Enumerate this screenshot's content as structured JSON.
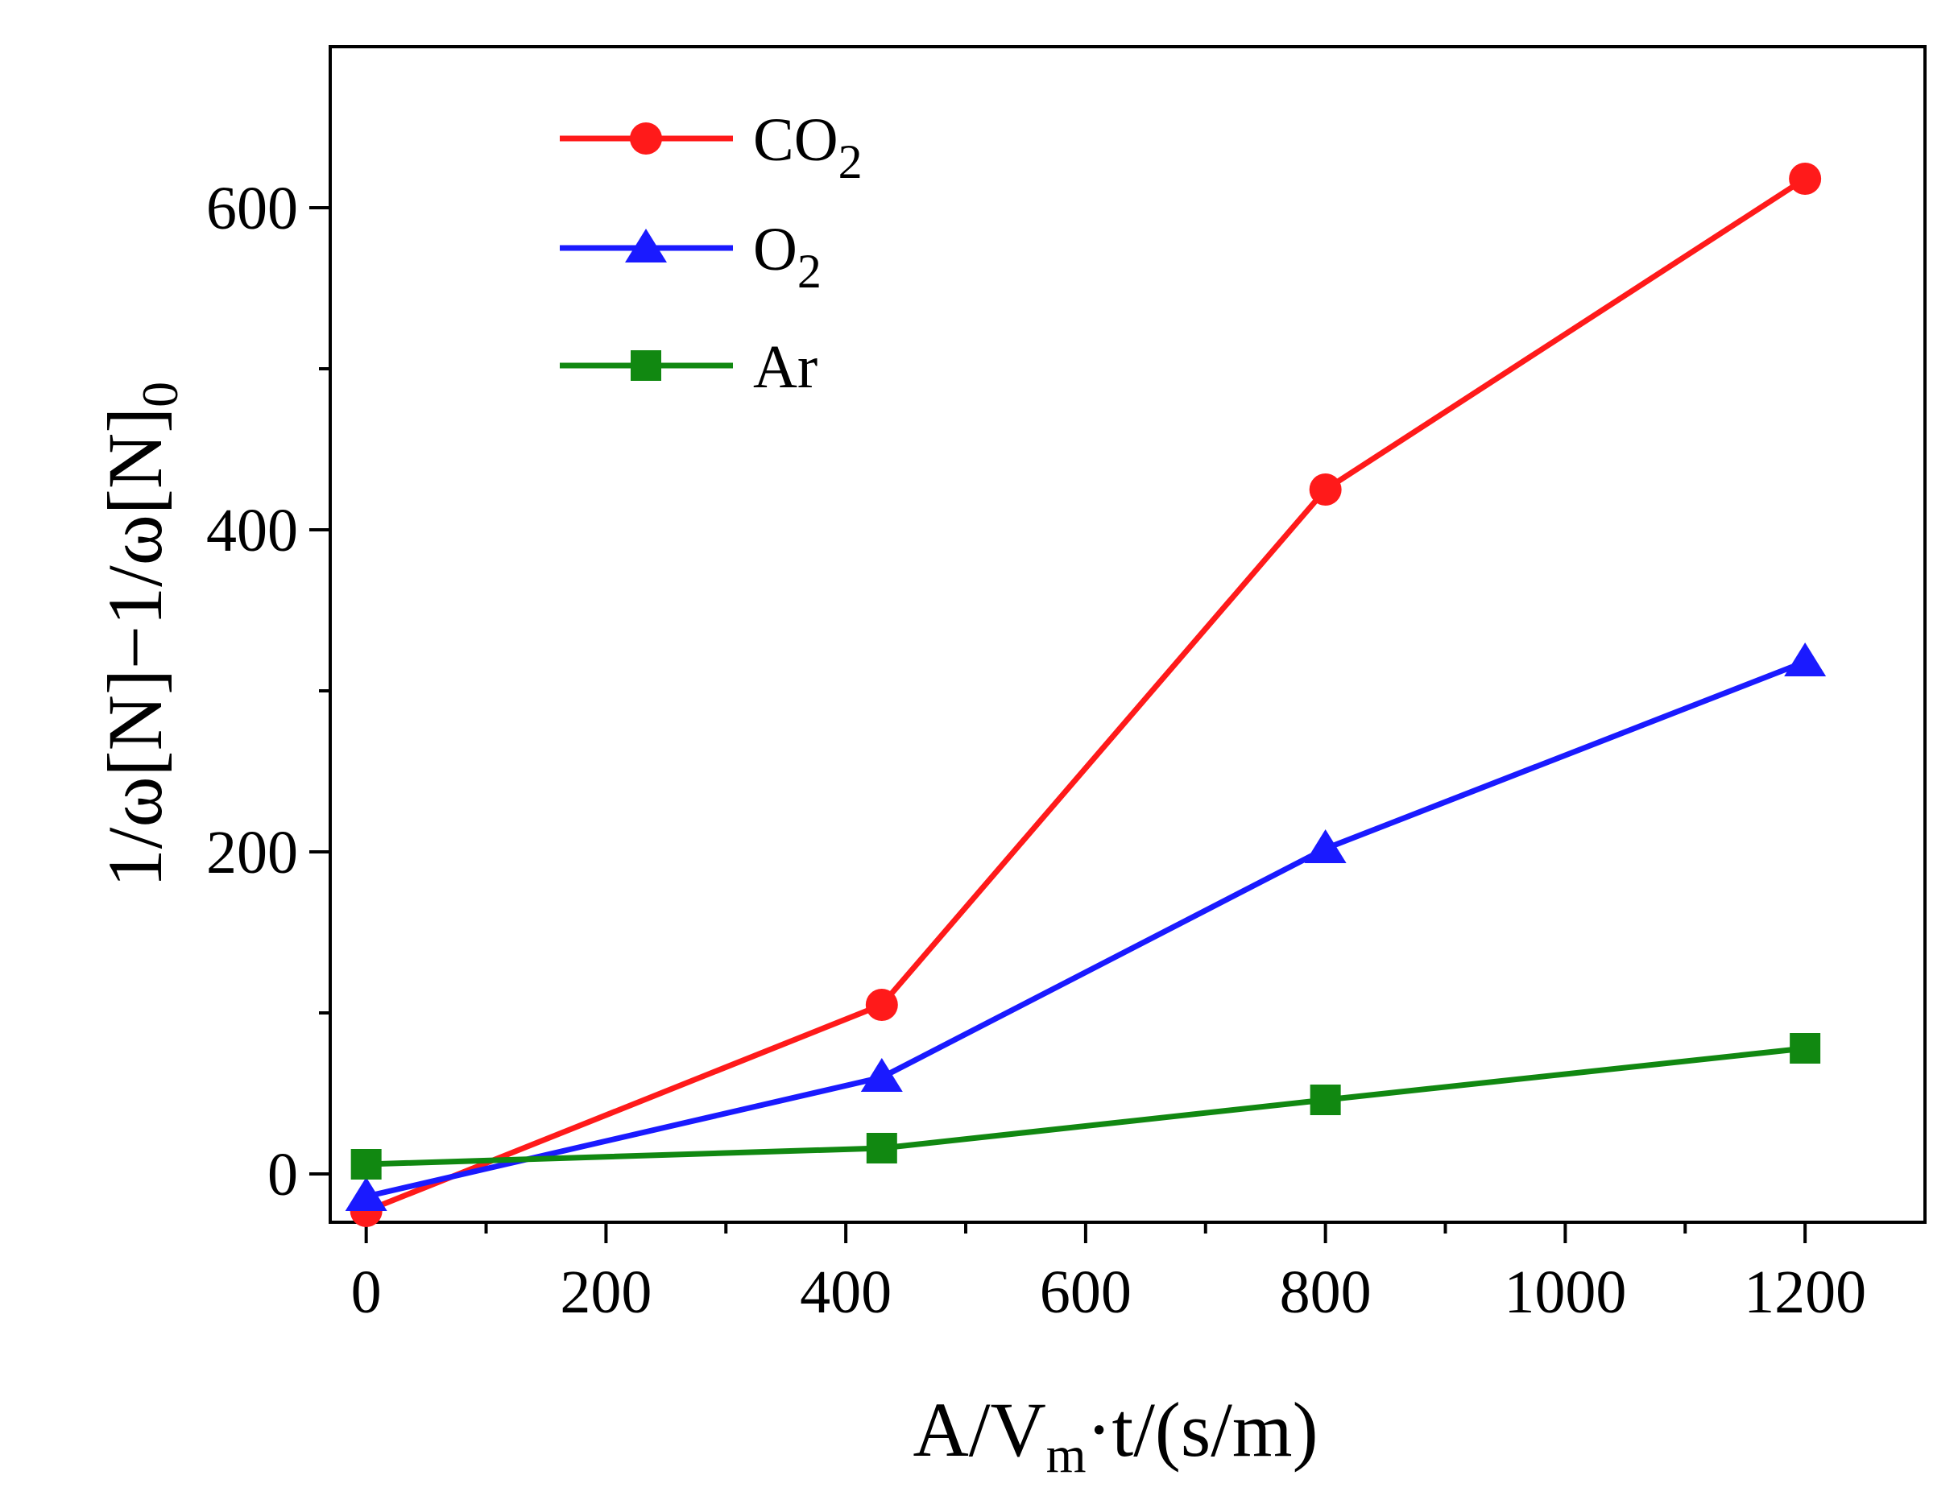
{
  "chart_data": {
    "type": "line",
    "title": "",
    "xlabel": {
      "main": "A/V",
      "sub": "m",
      "rest": "·t/(s/m)"
    },
    "ylabel": {
      "main": "1/ω[N]−1/ω[N]",
      "sub": "0"
    },
    "xlim": [
      -30,
      1300
    ],
    "ylim": [
      -30,
      700
    ],
    "xticks": [
      0,
      200,
      400,
      600,
      800,
      1000,
      1200
    ],
    "xtick_labels": [
      "0",
      "200",
      "400",
      "600",
      "800",
      "1000",
      "1200"
    ],
    "xminor": [
      100,
      300,
      500,
      700,
      900,
      1100
    ],
    "yticks": [
      0,
      200,
      400,
      600
    ],
    "ytick_labels": [
      "0",
      "200",
      "400",
      "600"
    ],
    "yminor": [
      100,
      300,
      500
    ],
    "grid": false,
    "legend_position": "top-left",
    "series": [
      {
        "name": "CO",
        "name_sub": "2",
        "color": "#ff1a1a",
        "marker": "circle",
        "x": [
          0,
          430,
          800,
          1200
        ],
        "values": [
          -23,
          105,
          425,
          618
        ]
      },
      {
        "name": "O",
        "name_sub": "2",
        "color": "#1a1aff",
        "marker": "triangle",
        "x": [
          0,
          430,
          800,
          1200
        ],
        "values": [
          -14,
          60,
          202,
          318
        ]
      },
      {
        "name": "Ar",
        "name_sub": "",
        "color": "#118811",
        "marker": "square",
        "x": [
          0,
          430,
          800,
          1200
        ],
        "values": [
          6,
          16,
          46,
          78
        ]
      }
    ]
  }
}
